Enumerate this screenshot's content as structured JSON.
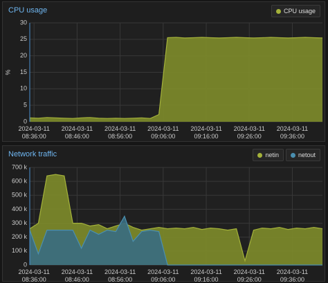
{
  "chart_data": [
    {
      "type": "area",
      "title": "CPU usage",
      "y_label": "%",
      "x": [
        "2024-03-11 08:35:00",
        "2024-03-11 08:37:00",
        "2024-03-11 08:39:00",
        "2024-03-11 08:41:00",
        "2024-03-11 08:43:00",
        "2024-03-11 08:45:00",
        "2024-03-11 08:47:00",
        "2024-03-11 08:49:00",
        "2024-03-11 08:51:00",
        "2024-03-11 08:53:00",
        "2024-03-11 08:55:00",
        "2024-03-11 08:57:00",
        "2024-03-11 08:59:00",
        "2024-03-11 09:01:00",
        "2024-03-11 09:03:00",
        "2024-03-11 09:05:00",
        "2024-03-11 09:07:00",
        "2024-03-11 09:09:00",
        "2024-03-11 09:11:00",
        "2024-03-11 09:13:00",
        "2024-03-11 09:15:00",
        "2024-03-11 09:17:00",
        "2024-03-11 09:19:00",
        "2024-03-11 09:21:00",
        "2024-03-11 09:23:00",
        "2024-03-11 09:25:00",
        "2024-03-11 09:27:00",
        "2024-03-11 09:29:00",
        "2024-03-11 09:31:00",
        "2024-03-11 09:33:00",
        "2024-03-11 09:35:00",
        "2024-03-11 09:37:00",
        "2024-03-11 09:39:00",
        "2024-03-11 09:41:00",
        "2024-03-11 09:43:00"
      ],
      "series": [
        {
          "name": "CPU usage",
          "color": "#a4b23a",
          "fill": "#7d8a2a",
          "values": [
            1.2,
            1.1,
            1.3,
            1.2,
            1.1,
            1.0,
            1.2,
            1.3,
            1.1,
            1.0,
            1.1,
            1.0,
            1.1,
            1.2,
            1.0,
            2.2,
            25.5,
            25.6,
            25.4,
            25.5,
            25.6,
            25.5,
            25.4,
            25.5,
            25.6,
            25.5,
            25.4,
            25.5,
            25.6,
            25.5,
            25.4,
            25.5,
            25.6,
            25.5,
            25.4
          ]
        }
      ],
      "xlim": [
        "2024-03-11 08:35:00",
        "2024-03-11 09:43:00"
      ],
      "xticks": [
        "2024-03-11 08:36:00",
        "2024-03-11 08:46:00",
        "2024-03-11 08:56:00",
        "2024-03-11 09:06:00",
        "2024-03-11 09:16:00",
        "2024-03-11 09:26:00",
        "2024-03-11 09:36:00"
      ],
      "ylim": [
        0,
        30
      ],
      "yticks": [
        0,
        5,
        10,
        15,
        20,
        25,
        30
      ],
      "grid": true
    },
    {
      "type": "area",
      "title": "Network traffic",
      "x": [
        "2024-03-11 08:35:00",
        "2024-03-11 08:37:00",
        "2024-03-11 08:39:00",
        "2024-03-11 08:41:00",
        "2024-03-11 08:43:00",
        "2024-03-11 08:45:00",
        "2024-03-11 08:47:00",
        "2024-03-11 08:49:00",
        "2024-03-11 08:51:00",
        "2024-03-11 08:53:00",
        "2024-03-11 08:55:00",
        "2024-03-11 08:57:00",
        "2024-03-11 08:59:00",
        "2024-03-11 09:01:00",
        "2024-03-11 09:03:00",
        "2024-03-11 09:05:00",
        "2024-03-11 09:07:00",
        "2024-03-11 09:09:00",
        "2024-03-11 09:11:00",
        "2024-03-11 09:13:00",
        "2024-03-11 09:15:00",
        "2024-03-11 09:17:00",
        "2024-03-11 09:19:00",
        "2024-03-11 09:21:00",
        "2024-03-11 09:23:00",
        "2024-03-11 09:25:00",
        "2024-03-11 09:27:00",
        "2024-03-11 09:29:00",
        "2024-03-11 09:31:00",
        "2024-03-11 09:33:00",
        "2024-03-11 09:35:00",
        "2024-03-11 09:37:00",
        "2024-03-11 09:39:00",
        "2024-03-11 09:41:00",
        "2024-03-11 09:43:00"
      ],
      "series": [
        {
          "name": "netin",
          "color": "#a4b23a",
          "fill": "#7d8a2a",
          "values": [
            260000,
            300000,
            640000,
            650000,
            640000,
            300000,
            300000,
            280000,
            290000,
            260000,
            280000,
            300000,
            270000,
            250000,
            260000,
            270000,
            260000,
            265000,
            260000,
            270000,
            255000,
            265000,
            260000,
            250000,
            260000,
            30000,
            250000,
            265000,
            260000,
            270000,
            255000,
            265000,
            260000,
            270000,
            260000
          ]
        },
        {
          "name": "netout",
          "color": "#4a8fb0",
          "fill": "#3a6c80",
          "values": [
            250000,
            80000,
            250000,
            250000,
            250000,
            250000,
            120000,
            250000,
            220000,
            250000,
            240000,
            350000,
            170000,
            240000,
            250000,
            240000,
            0,
            0,
            0,
            0,
            0,
            0,
            0,
            0,
            0,
            0,
            0,
            0,
            0,
            0,
            0,
            0,
            0,
            0,
            0
          ]
        }
      ],
      "xlim": [
        "2024-03-11 08:35:00",
        "2024-03-11 09:43:00"
      ],
      "xticks": [
        "2024-03-11 08:36:00",
        "2024-03-11 08:46:00",
        "2024-03-11 08:56:00",
        "2024-03-11 09:06:00",
        "2024-03-11 09:16:00",
        "2024-03-11 09:26:00",
        "2024-03-11 09:36:00"
      ],
      "ylim": [
        0,
        700000
      ],
      "yticks": [
        0,
        {
          "value": 100000,
          "label": "100 k"
        },
        {
          "value": 200000,
          "label": "200 k"
        },
        {
          "value": 300000,
          "label": "300 k"
        },
        {
          "value": 400000,
          "label": "400 k"
        },
        {
          "value": 500000,
          "label": "500 k"
        },
        {
          "value": 600000,
          "label": "600 k"
        },
        {
          "value": 700000,
          "label": "700 k"
        }
      ],
      "grid": true
    }
  ]
}
